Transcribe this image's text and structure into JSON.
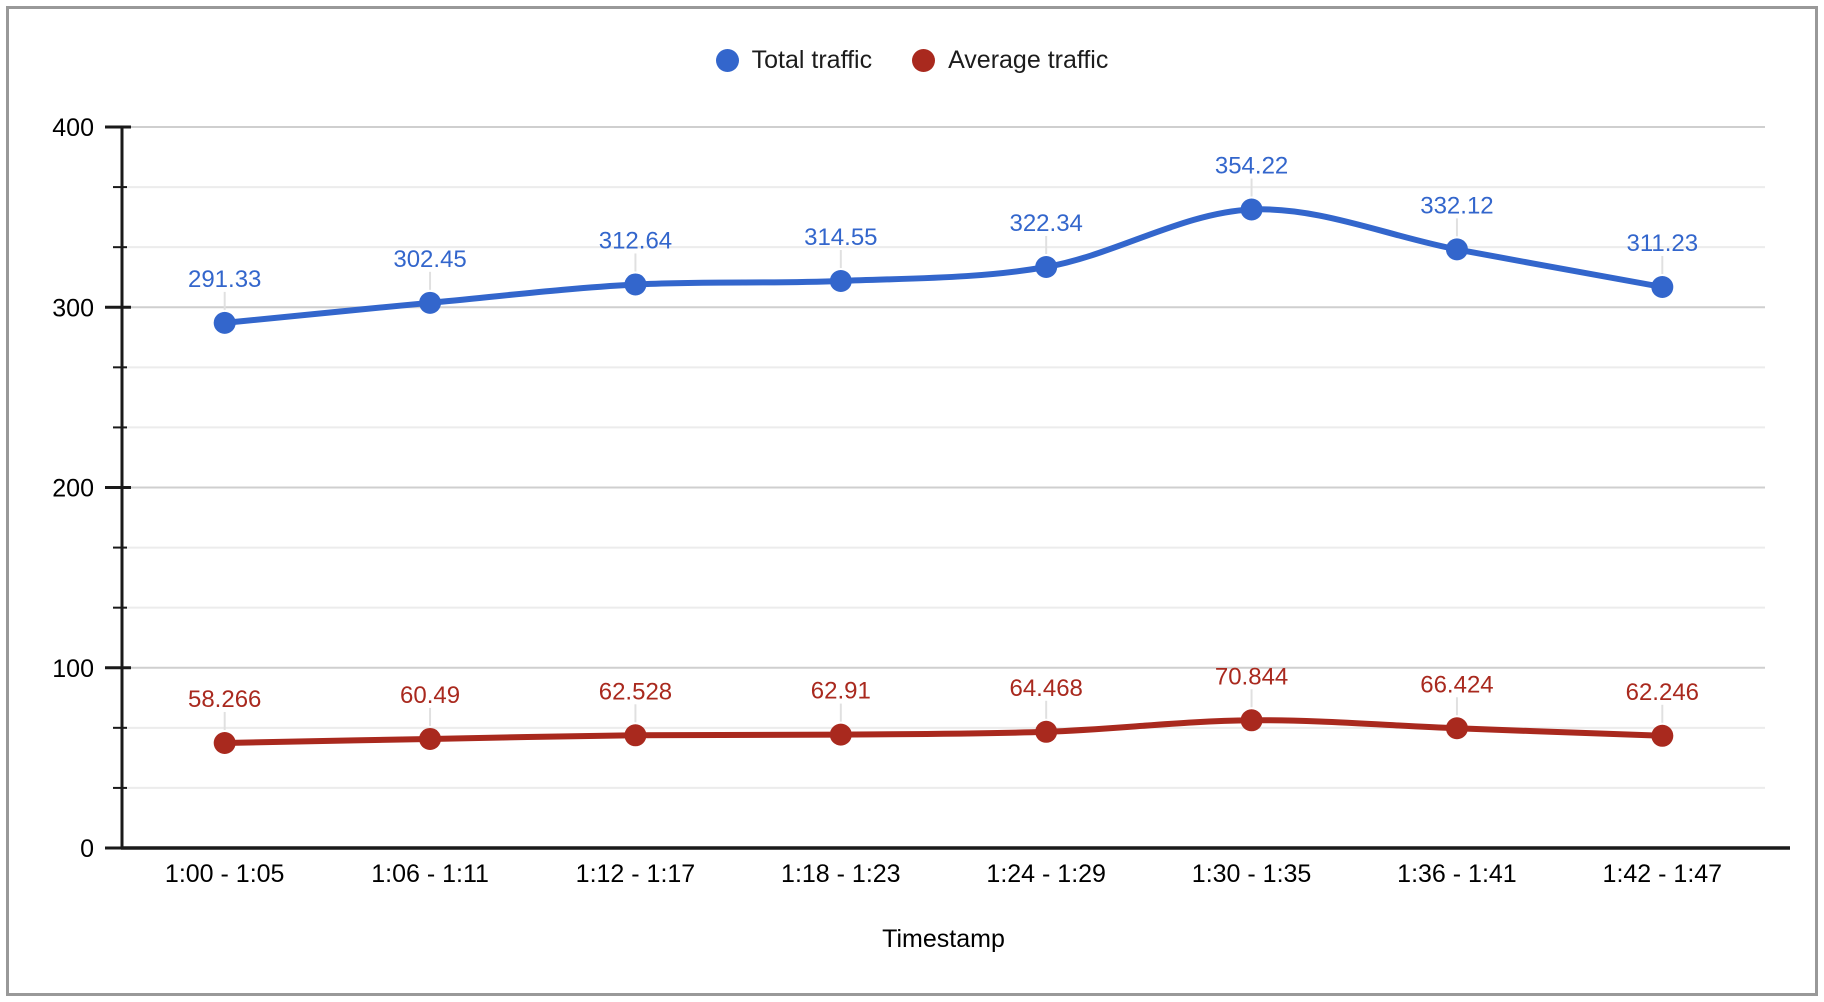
{
  "chart_data": {
    "type": "line",
    "smooth": true,
    "grid": true,
    "legend_position": "top",
    "xlabel": "Timestamp",
    "ylabel": "",
    "categories": [
      "1:00 - 1:05",
      "1:06 - 1:11",
      "1:12 - 1:17",
      "1:18 - 1:23",
      "1:24 - 1:29",
      "1:30 - 1:35",
      "1:36 - 1:41",
      "1:42 - 1:47"
    ],
    "series": [
      {
        "name": "Total traffic",
        "color": "#3366cc",
        "values": [
          291.33,
          302.45,
          312.64,
          314.55,
          322.34,
          354.22,
          332.12,
          311.23
        ],
        "labels": [
          "291.33",
          "302.45",
          "312.64",
          "314.55",
          "322.34",
          "354.22",
          "332.12",
          "311.23"
        ]
      },
      {
        "name": "Average traffic",
        "color": "#a9291e",
        "values": [
          58.266,
          60.49,
          62.528,
          62.91,
          64.468,
          70.844,
          66.424,
          62.246
        ],
        "labels": [
          "58.266",
          "60.49",
          "62.528",
          "62.91",
          "64.468",
          "70.844",
          "66.424",
          "62.246"
        ]
      }
    ],
    "y_axis": {
      "min": 0,
      "max": 400,
      "major_step": 100,
      "minors_between_majors": 2,
      "tick_labels": [
        "0",
        "100",
        "200",
        "300",
        "400"
      ]
    }
  },
  "colors": {
    "frame_border": "#999999",
    "grid_major": "#cfcfcf",
    "grid_minor": "#ececec",
    "axis": "#1a1a1a",
    "label_leader": "#e0e0e0",
    "axis_text": "#000000",
    "legend_text": "#1c1c1c",
    "background": "#ffffff"
  }
}
